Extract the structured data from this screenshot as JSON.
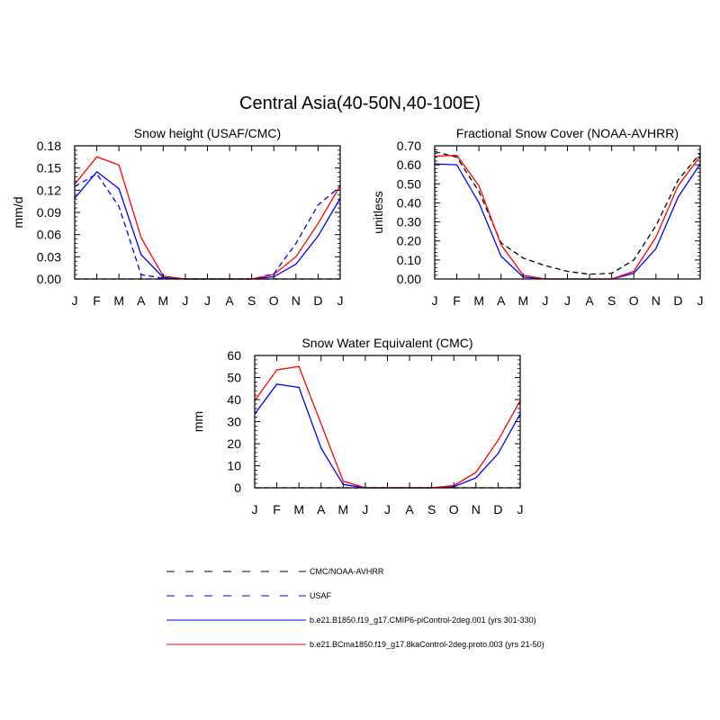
{
  "figure": {
    "title": "Central Asia(40-50N,40-100E)"
  },
  "chart_data": [
    {
      "type": "line",
      "title": "Snow height (USAF/CMC)",
      "xlabel": "",
      "ylabel": "mm/d",
      "x_ticks": [
        "J",
        "F",
        "M",
        "A",
        "M",
        "J",
        "J",
        "A",
        "S",
        "O",
        "N",
        "D",
        "J"
      ],
      "y_ticks": [
        "0.00",
        "0.03",
        "0.06",
        "0.09",
        "0.12",
        "0.15",
        "0.18"
      ],
      "ylim": [
        0,
        0.18
      ],
      "series": [
        {
          "name": "CMC/NOAA-AVHRR",
          "color": "#000000",
          "dash": true,
          "values": [
            0,
            0,
            0,
            0,
            0,
            0,
            0,
            0,
            0,
            0,
            0,
            0,
            0
          ]
        },
        {
          "name": "USAF",
          "color": "#0000ff",
          "dash": true,
          "values": [
            0.125,
            0.142,
            0.098,
            0.006,
            0.001,
            0,
            0,
            0,
            0,
            0.007,
            0.048,
            0.1,
            0.125
          ]
        },
        {
          "name": "b.e21.B1850.f19_g17.CMIP6-piControl-2deg.001 (yrs 301-330)",
          "color": "#0000ff",
          "dash": false,
          "values": [
            0.109,
            0.145,
            0.122,
            0.033,
            0.002,
            0,
            0,
            0,
            0,
            0.003,
            0.02,
            0.058,
            0.109
          ]
        },
        {
          "name": "b.e21.BCma1850.f19_g17.8kaControl-2deg.proto.003 (yrs 21-50)",
          "color": "#ff0000",
          "dash": false,
          "values": [
            0.128,
            0.165,
            0.154,
            0.056,
            0.004,
            0,
            0,
            0,
            0,
            0.006,
            0.03,
            0.075,
            0.126
          ]
        }
      ]
    },
    {
      "type": "line",
      "title": "Fractional Snow Cover (NOAA-AVHRR)",
      "xlabel": "",
      "ylabel": "unitless",
      "x_ticks": [
        "J",
        "F",
        "M",
        "A",
        "M",
        "J",
        "J",
        "A",
        "S",
        "O",
        "N",
        "D",
        "J"
      ],
      "y_ticks": [
        "0.00",
        "0.10",
        "0.20",
        "0.30",
        "0.40",
        "0.50",
        "0.60",
        "0.70"
      ],
      "ylim": [
        0,
        0.7
      ],
      "series": [
        {
          "name": "CMC/NOAA-AVHRR",
          "color": "#000000",
          "dash": true,
          "values": [
            0.67,
            0.64,
            0.46,
            0.19,
            0.11,
            0.07,
            0.04,
            0.025,
            0.03,
            0.1,
            0.28,
            0.52,
            0.66
          ]
        },
        {
          "name": "b.e21.B1850.f19_g17.CMIP6-piControl-2deg.001 (yrs 301-330)",
          "color": "#0000ff",
          "dash": false,
          "values": [
            0.605,
            0.6,
            0.4,
            0.12,
            0.01,
            0,
            0,
            0,
            0,
            0.03,
            0.16,
            0.43,
            0.605
          ]
        },
        {
          "name": "b.e21.BCma1850.f19_g17.8kaControl-2deg.proto.003 (yrs 21-50)",
          "color": "#ff0000",
          "dash": false,
          "values": [
            0.645,
            0.65,
            0.49,
            0.18,
            0.02,
            0,
            0,
            0,
            0,
            0.04,
            0.22,
            0.49,
            0.645
          ]
        }
      ]
    },
    {
      "type": "line",
      "title": "Snow Water Equivalent (CMC)",
      "xlabel": "",
      "ylabel": "mm",
      "x_ticks": [
        "J",
        "F",
        "M",
        "A",
        "M",
        "J",
        "J",
        "A",
        "S",
        "O",
        "N",
        "D",
        "J"
      ],
      "y_ticks": [
        "0",
        "10",
        "20",
        "30",
        "40",
        "50",
        "60"
      ],
      "ylim": [
        0,
        60
      ],
      "series": [
        {
          "name": "CMC/NOAA-AVHRR",
          "color": "#000000",
          "dash": true,
          "values": [
            0,
            0,
            0,
            0,
            0,
            0,
            0,
            0,
            0,
            0,
            0,
            0,
            0
          ]
        },
        {
          "name": "b.e21.B1850.f19_g17.CMIP6-piControl-2deg.001 (yrs 301-330)",
          "color": "#0000ff",
          "dash": false,
          "values": [
            33.5,
            47,
            45.5,
            18,
            1.5,
            0,
            0,
            0,
            0,
            0.5,
            4.5,
            15.5,
            33.5
          ]
        },
        {
          "name": "b.e21.BCma1850.f19_g17.8kaControl-2deg.proto.003 (yrs 21-50)",
          "color": "#ff0000",
          "dash": false,
          "values": [
            39.5,
            53.5,
            55,
            29,
            3,
            0,
            0,
            0,
            0,
            1,
            7,
            21.5,
            39.5
          ]
        }
      ]
    }
  ],
  "legend": {
    "entries": [
      {
        "label": "CMC/NOAA-AVHRR",
        "color": "#000000",
        "dash": true
      },
      {
        "label": "USAF",
        "color": "#0000ff",
        "dash": true
      },
      {
        "label": "b.e21.B1850.f19_g17.CMIP6-piControl-2deg.001 (yrs 301-330)",
        "color": "#0000ff",
        "dash": false
      },
      {
        "label": "b.e21.BCma1850.f19_g17.8kaControl-2deg.proto.003 (yrs 21-50)",
        "color": "#ff0000",
        "dash": false
      }
    ]
  }
}
